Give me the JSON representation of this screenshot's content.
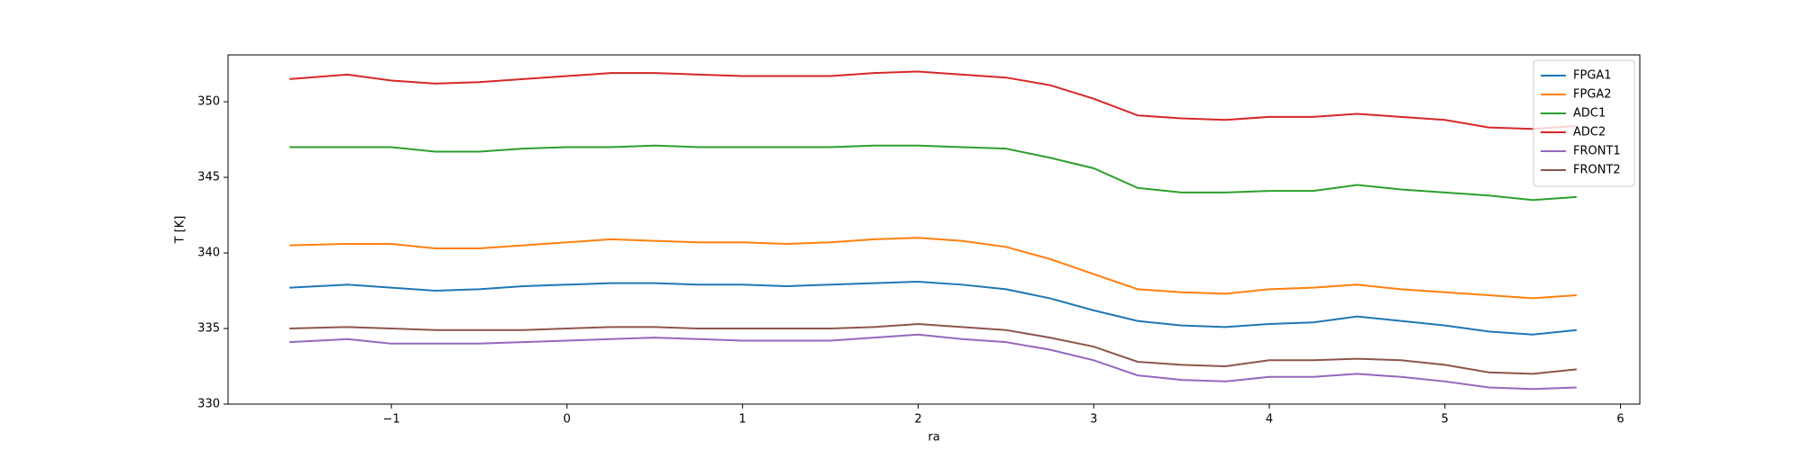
{
  "chart_data": {
    "type": "line",
    "xlabel": "ra",
    "ylabel": "T [K]",
    "x": [
      -1.58,
      -1.25,
      -1,
      -0.75,
      -0.5,
      -0.25,
      0,
      0.25,
      0.5,
      0.75,
      1,
      1.25,
      1.5,
      1.75,
      2,
      2.25,
      2.5,
      2.75,
      3,
      3.25,
      3.5,
      3.75,
      4,
      4.25,
      4.5,
      4.75,
      5,
      5.25,
      5.5,
      5.75
    ],
    "series": [
      {
        "name": "FPGA1",
        "color": "#1f77b4",
        "values": [
          337.7,
          337.9,
          337.7,
          337.5,
          337.6,
          337.8,
          337.9,
          338.0,
          338.0,
          337.9,
          337.9,
          337.8,
          337.9,
          338.0,
          338.1,
          337.9,
          337.6,
          337.0,
          336.2,
          335.5,
          335.2,
          335.1,
          335.3,
          335.4,
          335.8,
          335.5,
          335.2,
          334.8,
          334.6,
          334.9
        ]
      },
      {
        "name": "FPGA2",
        "color": "#ff7f0e",
        "values": [
          340.5,
          340.6,
          340.6,
          340.3,
          340.3,
          340.5,
          340.7,
          340.9,
          340.8,
          340.7,
          340.7,
          340.6,
          340.7,
          340.9,
          341.0,
          340.8,
          340.4,
          339.6,
          338.6,
          337.6,
          337.4,
          337.3,
          337.6,
          337.7,
          337.9,
          337.6,
          337.4,
          337.2,
          337.0,
          337.2
        ]
      },
      {
        "name": "ADC1",
        "color": "#2ca02c",
        "values": [
          347.0,
          347.0,
          347.0,
          346.7,
          346.7,
          346.9,
          347.0,
          347.0,
          347.1,
          347.0,
          347.0,
          347.0,
          347.0,
          347.1,
          347.1,
          347.0,
          346.9,
          346.3,
          345.6,
          344.3,
          344.0,
          344.0,
          344.1,
          344.1,
          344.5,
          344.2,
          344.0,
          343.8,
          343.5,
          343.7
        ]
      },
      {
        "name": "ADC2",
        "color": "#d62728",
        "values": [
          351.5,
          351.8,
          351.4,
          351.2,
          351.3,
          351.5,
          351.7,
          351.9,
          351.9,
          351.8,
          351.7,
          351.7,
          351.7,
          351.9,
          352.0,
          351.8,
          351.6,
          351.1,
          350.2,
          349.1,
          348.9,
          348.8,
          349.0,
          349.0,
          349.2,
          349.0,
          348.8,
          348.3,
          348.2,
          348.4
        ]
      },
      {
        "name": "FRONT1",
        "color": "#9467bd",
        "values": [
          334.1,
          334.3,
          334.0,
          334.0,
          334.0,
          334.1,
          334.2,
          334.3,
          334.4,
          334.3,
          334.2,
          334.2,
          334.2,
          334.4,
          334.6,
          334.3,
          334.1,
          333.6,
          332.9,
          331.9,
          331.6,
          331.5,
          331.8,
          331.8,
          332.0,
          331.8,
          331.5,
          331.1,
          331.0,
          331.1
        ]
      },
      {
        "name": "FRONT2",
        "color": "#8c564b",
        "values": [
          335.0,
          335.1,
          335.0,
          334.9,
          334.9,
          334.9,
          335.0,
          335.1,
          335.1,
          335.0,
          335.0,
          335.0,
          335.0,
          335.1,
          335.3,
          335.1,
          334.9,
          334.4,
          333.8,
          332.8,
          332.6,
          332.5,
          332.9,
          332.9,
          333.0,
          332.9,
          332.6,
          332.1,
          332.0,
          332.3
        ]
      }
    ],
    "xlim": [
      -1.93,
      6.11
    ],
    "xticks": [
      {
        "value": -1,
        "label": "−1"
      },
      0,
      1,
      2,
      3,
      4,
      5,
      6
    ],
    "ylim": [
      330,
      353.1
    ],
    "yticks": [
      330,
      335,
      340,
      345,
      350
    ],
    "legend": "upper right"
  }
}
